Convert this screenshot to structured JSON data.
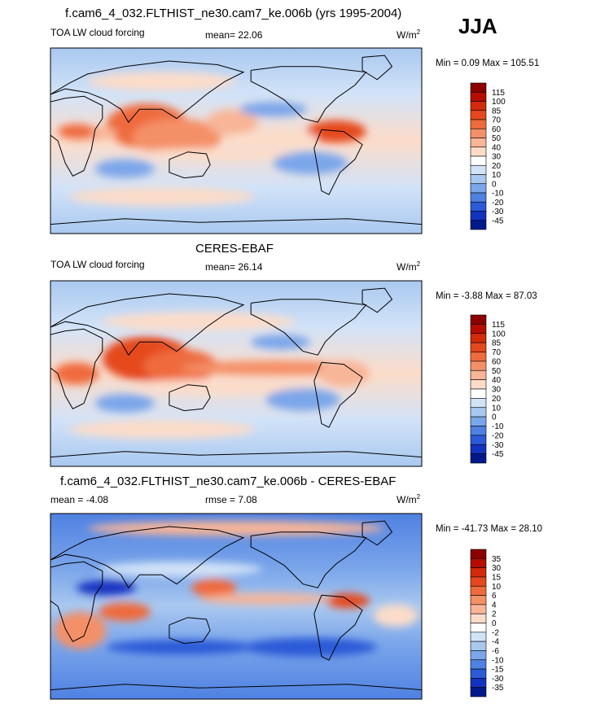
{
  "season": "JJA",
  "panels": [
    {
      "title": "f.cam6_4_032.FLTHIST_ne30.cam7_ke.006b (yrs 1995-2004)",
      "left_label": "TOA LW cloud forcing",
      "center_label": "mean=  22.06",
      "units": "W/m",
      "units_exp": "2",
      "minmax": "Min =   0.09 Max = 105.51",
      "colorbar": {
        "labels": [
          "115",
          "100",
          "85",
          "70",
          "60",
          "50",
          "40",
          "30",
          "20",
          "10",
          "0",
          "-10",
          "-20",
          "-30",
          "-45"
        ],
        "colors": [
          "#8b0000",
          "#b40d00",
          "#d22a0a",
          "#e5481e",
          "#ef6a3c",
          "#f49068",
          "#f8b597",
          "#fcdcc9",
          "#ffffff",
          "#d2e3f8",
          "#a9c8f0",
          "#7ba6ea",
          "#4f81e2",
          "#2c5ad8",
          "#1432c0",
          "#001a8c"
        ]
      }
    },
    {
      "title": "CERES-EBAF",
      "left_label": "TOA LW cloud forcing",
      "center_label": "mean=  26.14",
      "units": "W/m",
      "units_exp": "2",
      "minmax": "Min =  -3.88 Max =  87.03",
      "colorbar": {
        "labels": [
          "115",
          "100",
          "85",
          "70",
          "60",
          "50",
          "40",
          "30",
          "20",
          "10",
          "0",
          "-10",
          "-20",
          "-30",
          "-45"
        ],
        "colors": [
          "#8b0000",
          "#b40d00",
          "#d22a0a",
          "#e5481e",
          "#ef6a3c",
          "#f49068",
          "#f8b597",
          "#fcdcc9",
          "#ffffff",
          "#d2e3f8",
          "#a9c8f0",
          "#7ba6ea",
          "#4f81e2",
          "#2c5ad8",
          "#1432c0",
          "#001a8c"
        ]
      }
    },
    {
      "title": "f.cam6_4_032.FLTHIST_ne30.cam7_ke.006b - CERES-EBAF",
      "left_label": "mean =  -4.08",
      "center_label": "rmse =   7.08",
      "units": "W/m",
      "units_exp": "2",
      "minmax": "Min = -41.73 Max =  28.10",
      "colorbar": {
        "labels": [
          "35",
          "30",
          "15",
          "10",
          "6",
          "4",
          "2",
          "0",
          "-2",
          "-4",
          "-6",
          "-10",
          "-15",
          "-30",
          "-35"
        ],
        "colors": [
          "#8b0000",
          "#b40d00",
          "#d22a0a",
          "#e5481e",
          "#ef6a3c",
          "#f49068",
          "#f8b597",
          "#fcdcc9",
          "#ffffff",
          "#d2e3f8",
          "#a9c8f0",
          "#7ba6ea",
          "#4f81e2",
          "#2c5ad8",
          "#1432c0",
          "#001a8c"
        ]
      }
    }
  ],
  "chart_data": [
    {
      "type": "heatmap",
      "title": "f.cam6_4_032.FLTHIST_ne30.cam7_ke.006b (yrs 1995-2004)",
      "variable": "TOA LW cloud forcing",
      "units": "W/m2",
      "mean": 22.06,
      "min": 0.09,
      "max": 105.51,
      "contour_levels": [
        -45,
        -30,
        -20,
        -10,
        0,
        10,
        20,
        30,
        40,
        50,
        60,
        70,
        85,
        100,
        115
      ]
    },
    {
      "type": "heatmap",
      "title": "CERES-EBAF",
      "variable": "TOA LW cloud forcing",
      "units": "W/m2",
      "mean": 26.14,
      "min": -3.88,
      "max": 87.03,
      "contour_levels": [
        -45,
        -30,
        -20,
        -10,
        0,
        10,
        20,
        30,
        40,
        50,
        60,
        70,
        85,
        100,
        115
      ]
    },
    {
      "type": "heatmap",
      "title": "f.cam6_4_032.FLTHIST_ne30.cam7_ke.006b - CERES-EBAF",
      "units": "W/m2",
      "mean": -4.08,
      "rmse": 7.08,
      "min": -41.73,
      "max": 28.1,
      "contour_levels": [
        -35,
        -30,
        -15,
        -10,
        -6,
        -4,
        -2,
        0,
        2,
        4,
        6,
        10,
        15,
        30,
        35
      ]
    }
  ]
}
